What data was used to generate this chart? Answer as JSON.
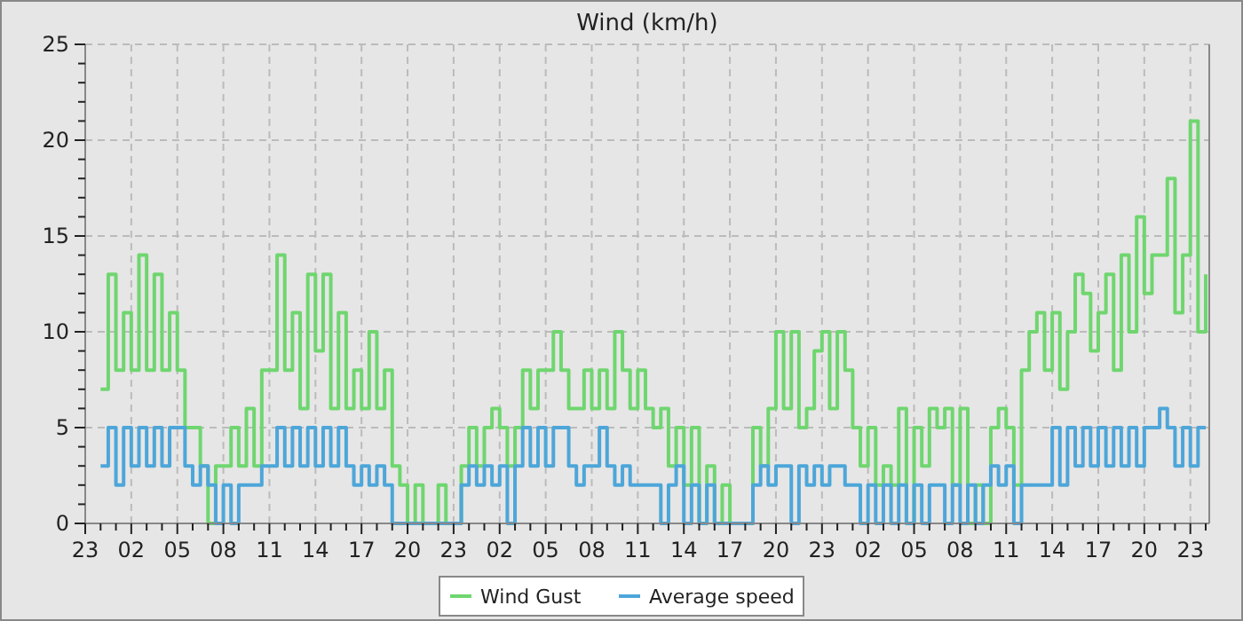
{
  "chart_data": {
    "type": "step",
    "title": "Wind (km/h)",
    "ylim": [
      0,
      25
    ],
    "categories": [
      "23",
      null,
      null,
      null,
      null,
      null,
      "02",
      null,
      null,
      null,
      null,
      null,
      "05",
      null,
      null,
      null,
      null,
      null,
      "08",
      null,
      null,
      null,
      null,
      null,
      "11",
      null,
      null,
      null,
      null,
      null,
      "14",
      null,
      null,
      null,
      null,
      null,
      "17",
      null,
      null,
      null,
      null,
      null,
      "20",
      null,
      null,
      null,
      null,
      null,
      "23",
      null,
      null,
      null,
      null,
      null,
      "02",
      null,
      null,
      null,
      null,
      null,
      "05",
      null,
      null,
      null,
      null,
      null,
      "08",
      null,
      null,
      null,
      null,
      null,
      "11",
      null,
      null,
      null,
      null,
      null,
      "14",
      null,
      null,
      null,
      null,
      null,
      "17",
      null,
      null,
      null,
      null,
      null,
      "20",
      null,
      null,
      null,
      null,
      null,
      "23",
      null,
      null,
      null,
      null,
      null,
      "02",
      null,
      null,
      null,
      null,
      null,
      "05",
      null,
      null,
      null,
      null,
      null,
      "08",
      null,
      null,
      null,
      null,
      null,
      "11",
      null,
      null,
      null,
      null,
      null,
      "14",
      null,
      null,
      null,
      null,
      null,
      "17",
      null,
      null,
      null,
      null,
      null,
      "20",
      null,
      null,
      null,
      null,
      null,
      "23",
      null,
      null
    ],
    "yticks": [
      0,
      {
        "value": 1,
        "label": null
      },
      {
        "value": 2,
        "label": null
      },
      {
        "value": 3,
        "label": null
      },
      {
        "value": 4,
        "label": null
      },
      5,
      {
        "value": 6,
        "label": null
      },
      {
        "value": 7,
        "label": null
      },
      {
        "value": 8,
        "label": null
      },
      {
        "value": 9,
        "label": null
      },
      10,
      {
        "value": 11,
        "label": null
      },
      {
        "value": 12,
        "label": null
      },
      {
        "value": 13,
        "label": null
      },
      {
        "value": 14,
        "label": null
      },
      15,
      {
        "value": 16,
        "label": null
      },
      {
        "value": 17,
        "label": null
      },
      {
        "value": 18,
        "label": null
      },
      {
        "value": 19,
        "label": null
      },
      20,
      {
        "value": 21,
        "label": null
      },
      {
        "value": 22,
        "label": null
      },
      {
        "value": 23,
        "label": null
      },
      {
        "value": 24,
        "label": null
      },
      25
    ],
    "grid": true,
    "line_style": "solid",
    "legend": "bottom",
    "series": [
      {
        "name": "Wind Gust",
        "color": "#6fd66f",
        "values": [
          null,
          null,
          7,
          13,
          8,
          11,
          8,
          14,
          8,
          13,
          8,
          11,
          8,
          5,
          5,
          3,
          0,
          3,
          3,
          5,
          3,
          6,
          3,
          8,
          8,
          14,
          8,
          11,
          6,
          13,
          9,
          13,
          6,
          11,
          6,
          8,
          6,
          10,
          6,
          8,
          3,
          2,
          0,
          2,
          0,
          0,
          2,
          0,
          0,
          3,
          5,
          3,
          5,
          6,
          5,
          3,
          5,
          8,
          6,
          8,
          8,
          10,
          8,
          6,
          6,
          8,
          6,
          8,
          6,
          10,
          8,
          6,
          8,
          6,
          5,
          6,
          3,
          5,
          2,
          5,
          0,
          3,
          0,
          2,
          0,
          0,
          0,
          5,
          3,
          6,
          10,
          6,
          10,
          5,
          6,
          9,
          10,
          6,
          10,
          8,
          5,
          3,
          5,
          2,
          3,
          2,
          6,
          0,
          5,
          3,
          6,
          5,
          6,
          2,
          6,
          0,
          2,
          0,
          5,
          6,
          5,
          2,
          8,
          10,
          11,
          8,
          11,
          7,
          10,
          13,
          12,
          9,
          11,
          13,
          8,
          14,
          10,
          16,
          12,
          14,
          14,
          18,
          11,
          14,
          21,
          10,
          13
        ]
      },
      {
        "name": "Average speed",
        "color": "#4da6d9",
        "values": [
          null,
          null,
          3,
          5,
          2,
          5,
          3,
          5,
          3,
          5,
          3,
          5,
          5,
          3,
          2,
          3,
          2,
          0,
          2,
          0,
          2,
          2,
          2,
          3,
          3,
          5,
          3,
          5,
          3,
          5,
          3,
          5,
          3,
          5,
          3,
          2,
          3,
          2,
          3,
          2,
          0,
          0,
          0,
          0,
          0,
          0,
          0,
          0,
          0,
          2,
          3,
          2,
          3,
          2,
          3,
          0,
          3,
          5,
          3,
          5,
          3,
          5,
          5,
          3,
          2,
          3,
          3,
          5,
          3,
          2,
          3,
          2,
          2,
          2,
          2,
          0,
          2,
          3,
          0,
          2,
          0,
          2,
          0,
          0,
          0,
          0,
          0,
          2,
          3,
          2,
          3,
          3,
          0,
          3,
          2,
          3,
          2,
          3,
          3,
          2,
          2,
          0,
          2,
          0,
          2,
          0,
          2,
          0,
          2,
          0,
          2,
          2,
          0,
          2,
          0,
          2,
          0,
          2,
          3,
          2,
          3,
          0,
          2,
          2,
          2,
          2,
          5,
          2,
          5,
          3,
          5,
          3,
          5,
          3,
          5,
          3,
          5,
          3,
          5,
          5,
          6,
          5,
          3,
          5,
          3,
          5,
          5
        ]
      }
    ]
  }
}
